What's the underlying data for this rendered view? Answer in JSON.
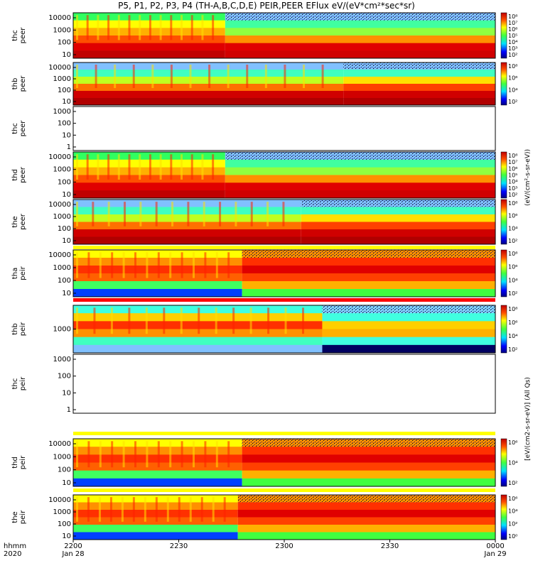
{
  "title": "P5, P1, P2, P3, P4 (TH-A,B,C,D,E) PEIR,PEER EFlux eV/(eV*cm²*sec*sr)",
  "colorbar_units_peer": "(eV/(cm²-s-sr-eV))",
  "colorbar_units_peir": "[eV/(cm2-s-sr-eV)]",
  "colorbar_units_peir_long": "[eV/(cm2-s-sr-eV)] (All Qs)",
  "time_axis": {
    "row1_label": "hhmm",
    "row2_label": "2020",
    "ticks": [
      "2200",
      "2230",
      "2300",
      "2330",
      "0000"
    ],
    "dates": [
      "Jan 28",
      "Jan 29"
    ]
  },
  "chart_data": [
    {
      "type": "heatmap",
      "probe": "thc",
      "species": "peer",
      "label_line1": "thc",
      "label_line2": "peer",
      "y_ticks": [
        "10000",
        "1000",
        "100",
        "10"
      ],
      "colorbar_ticks": [
        "10⁸",
        "10⁷",
        "10⁶",
        "10⁵",
        "10⁴",
        "10³",
        "10²"
      ],
      "has_data": true,
      "profile": "enhanced_early",
      "transition_fraction": 0.36
    },
    {
      "type": "heatmap",
      "probe": "thb",
      "species": "peer",
      "label_line1": "thb",
      "label_line2": "peer",
      "y_ticks": [
        "10000",
        "1000",
        "100",
        "10"
      ],
      "colorbar_ticks": [
        "10⁸",
        "10⁶",
        "10⁴",
        "10²"
      ],
      "has_data": true,
      "profile": "steady",
      "transition_fraction": 0.64
    },
    {
      "type": "heatmap",
      "probe": "thc",
      "species": "peer",
      "label_line1": "thc",
      "label_line2": "peer",
      "y_ticks": [
        "1000",
        "100",
        "10",
        "1"
      ],
      "colorbar_ticks": [],
      "has_data": false
    },
    {
      "type": "heatmap",
      "probe": "thd",
      "species": "peer",
      "label_line1": "thd",
      "label_line2": "peer",
      "y_ticks": [
        "10000",
        "1000",
        "100",
        "10"
      ],
      "colorbar_ticks": [
        "10⁸",
        "10⁷",
        "10⁶",
        "10⁵",
        "10⁴",
        "10³",
        "10²"
      ],
      "has_data": true,
      "profile": "enhanced_early",
      "transition_fraction": 0.36
    },
    {
      "type": "heatmap",
      "probe": "the",
      "species": "peer",
      "label_line1": "the",
      "label_line2": "peer",
      "y_ticks": [
        "10000",
        "1000",
        "100",
        "10"
      ],
      "colorbar_ticks": [
        "10⁸",
        "10⁶",
        "10⁴",
        "10²"
      ],
      "has_data": true,
      "profile": "steady",
      "transition_fraction": 0.54
    },
    {
      "type": "heatmap",
      "probe": "tha",
      "species": "peir",
      "label_line1": "tha",
      "label_line2": "peir",
      "y_ticks": [
        "10000",
        "1000",
        "100",
        "10"
      ],
      "colorbar_ticks": [
        "10⁸",
        "10⁶",
        "10⁴",
        "10²"
      ],
      "has_data": true,
      "profile": "ion_hot",
      "transition_fraction": 0.4
    },
    {
      "type": "heatmap",
      "probe": "thb",
      "species": "peir",
      "label_line1": "thb",
      "label_line2": "peir",
      "y_ticks": [
        "1000"
      ],
      "colorbar_ticks": [
        "10⁸",
        "10⁶",
        "10⁴",
        "10²"
      ],
      "has_data": true,
      "profile": "ion_thb",
      "transition_fraction": 0.59
    },
    {
      "type": "heatmap",
      "probe": "thc",
      "species": "peir",
      "label_line1": "thc",
      "label_line2": "peir",
      "y_ticks": [
        "1000",
        "100",
        "10",
        "1"
      ],
      "colorbar_ticks": [],
      "has_data": false
    },
    {
      "type": "heatmap",
      "probe": "thd",
      "species": "peir",
      "label_line1": "thd",
      "label_line2": "peir",
      "y_ticks": [
        "10000",
        "1000",
        "100",
        "10"
      ],
      "colorbar_ticks": [
        "10⁶",
        "10⁴",
        "10²"
      ],
      "has_data": true,
      "profile": "ion_hot",
      "transition_fraction": 0.4
    },
    {
      "type": "heatmap",
      "probe": "the",
      "species": "peir",
      "label_line1": "the",
      "label_line2": "peir",
      "y_ticks": [
        "10000",
        "1000",
        "100",
        "10"
      ],
      "colorbar_ticks": [
        "10⁶",
        "10⁴",
        "10²",
        "10⁰"
      ],
      "has_data": true,
      "profile": "ion_hot",
      "transition_fraction": 0.39
    }
  ]
}
